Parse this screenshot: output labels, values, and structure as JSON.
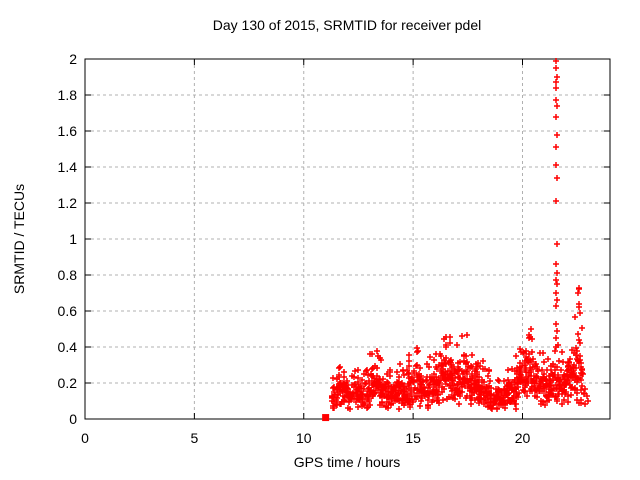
{
  "window": {
    "background": "#ffffff"
  },
  "chart_data": {
    "type": "scatter",
    "title": "Day 130 of 2015, SRMTID for receiver pdel",
    "xlabel": "GPS time / hours",
    "ylabel": "SRMTID / TECUs",
    "xlim": [
      0,
      24
    ],
    "ylim": [
      0,
      2
    ],
    "xticks": {
      "values": [
        0,
        5,
        10,
        15,
        20
      ],
      "labels": [
        "0",
        "5",
        "10",
        "15",
        "20"
      ]
    },
    "yticks": {
      "values": [
        0,
        0.2,
        0.4,
        0.6,
        0.8,
        1,
        1.2,
        1.4,
        1.6,
        1.8,
        2
      ],
      "labels": [
        "0",
        "0.2",
        "0.4",
        "0.6",
        "0.8",
        "1",
        "1.2",
        "1.4",
        "1.6",
        "1.8",
        "2"
      ]
    },
    "grid": {
      "on": true,
      "style": "dashed",
      "color": "#b0b0b0"
    },
    "legend": "none",
    "border_color": "#000000",
    "series": [
      {
        "name": "SRMTID",
        "marker": "plus",
        "color": "#ff0000",
        "start_marker": {
          "shape": "filled-square",
          "x": 11.0,
          "y": 0.008
        },
        "data_x_start": 11.2,
        "data_x_end": 22.95,
        "band_profile_columns": [
          "x_center_hours",
          "y_mean_tecus",
          "y_halfspread_tecus",
          "point_count"
        ],
        "band_profile": [
          [
            11.375,
            0.13,
            0.06,
            18
          ],
          [
            11.625,
            0.16,
            0.08,
            26
          ],
          [
            11.875,
            0.15,
            0.07,
            26
          ],
          [
            12.125,
            0.13,
            0.06,
            26
          ],
          [
            12.375,
            0.14,
            0.06,
            26
          ],
          [
            12.625,
            0.13,
            0.05,
            26
          ],
          [
            12.875,
            0.14,
            0.06,
            26
          ],
          [
            13.125,
            0.18,
            0.09,
            26
          ],
          [
            13.375,
            0.19,
            0.08,
            26
          ],
          [
            13.625,
            0.16,
            0.07,
            26
          ],
          [
            13.875,
            0.14,
            0.06,
            26
          ],
          [
            14.125,
            0.14,
            0.06,
            26
          ],
          [
            14.375,
            0.15,
            0.07,
            26
          ],
          [
            14.625,
            0.15,
            0.06,
            26
          ],
          [
            14.875,
            0.17,
            0.08,
            26
          ],
          [
            15.125,
            0.19,
            0.09,
            26
          ],
          [
            15.375,
            0.17,
            0.07,
            26
          ],
          [
            15.625,
            0.16,
            0.07,
            26
          ],
          [
            15.875,
            0.18,
            0.08,
            26
          ],
          [
            16.125,
            0.2,
            0.09,
            28
          ],
          [
            16.375,
            0.23,
            0.1,
            28
          ],
          [
            16.625,
            0.24,
            0.1,
            28
          ],
          [
            16.875,
            0.21,
            0.09,
            26
          ],
          [
            17.125,
            0.22,
            0.1,
            28
          ],
          [
            17.375,
            0.25,
            0.11,
            28
          ],
          [
            17.625,
            0.21,
            0.09,
            26
          ],
          [
            17.875,
            0.19,
            0.08,
            26
          ],
          [
            18.125,
            0.16,
            0.07,
            26
          ],
          [
            18.375,
            0.14,
            0.06,
            26
          ],
          [
            18.625,
            0.12,
            0.05,
            24
          ],
          [
            18.875,
            0.11,
            0.05,
            24
          ],
          [
            19.125,
            0.12,
            0.05,
            24
          ],
          [
            19.375,
            0.15,
            0.06,
            26
          ],
          [
            19.625,
            0.17,
            0.08,
            26
          ],
          [
            19.875,
            0.22,
            0.1,
            28
          ],
          [
            20.125,
            0.26,
            0.11,
            28
          ],
          [
            20.375,
            0.25,
            0.11,
            28
          ],
          [
            20.625,
            0.22,
            0.09,
            26
          ],
          [
            20.875,
            0.19,
            0.08,
            26
          ],
          [
            21.125,
            0.19,
            0.08,
            26
          ],
          [
            21.375,
            0.21,
            0.09,
            26
          ],
          [
            21.625,
            0.21,
            0.09,
            26
          ],
          [
            21.875,
            0.19,
            0.08,
            26
          ],
          [
            22.125,
            0.22,
            0.1,
            26
          ],
          [
            22.375,
            0.28,
            0.13,
            26
          ],
          [
            22.625,
            0.25,
            0.12,
            22
          ],
          [
            22.875,
            0.15,
            0.06,
            6
          ]
        ],
        "spike_points": [
          [
            21.55,
            1.99
          ],
          [
            21.55,
            1.95
          ],
          [
            21.56,
            1.9
          ],
          [
            21.54,
            1.87
          ],
          [
            21.55,
            1.84
          ],
          [
            21.55,
            1.77
          ],
          [
            21.57,
            1.74
          ],
          [
            21.55,
            1.68
          ],
          [
            21.56,
            1.58
          ],
          [
            21.55,
            1.51
          ],
          [
            21.54,
            1.41
          ],
          [
            21.56,
            1.34
          ],
          [
            21.55,
            1.21
          ],
          [
            21.58,
            0.97
          ],
          [
            21.55,
            0.86
          ],
          [
            21.57,
            0.81
          ],
          [
            21.54,
            0.77
          ],
          [
            21.56,
            0.75
          ],
          [
            21.55,
            0.7
          ],
          [
            21.57,
            0.66
          ],
          [
            21.53,
            0.63
          ],
          [
            21.55,
            0.53
          ],
          [
            21.58,
            0.49
          ],
          [
            21.52,
            0.45
          ],
          [
            21.6,
            0.41
          ],
          [
            21.5,
            0.38
          ]
        ],
        "cluster_points": [
          [
            22.56,
            0.73
          ],
          [
            22.59,
            0.72
          ],
          [
            22.54,
            0.7
          ],
          [
            22.58,
            0.64
          ],
          [
            22.56,
            0.62
          ],
          [
            22.61,
            0.59
          ],
          [
            22.53,
            0.47
          ],
          [
            22.57,
            0.44
          ],
          [
            22.62,
            0.42
          ],
          [
            22.5,
            0.38
          ],
          [
            22.64,
            0.35
          ],
          [
            22.52,
            0.33
          ]
        ]
      }
    ]
  }
}
